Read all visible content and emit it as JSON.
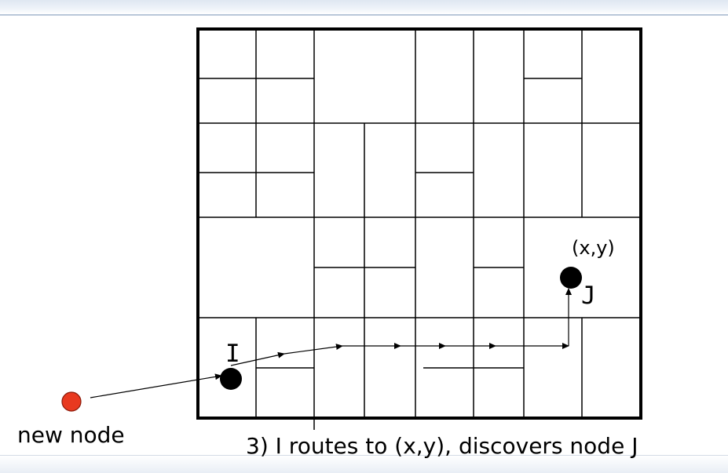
{
  "labels": {
    "node_i": "I",
    "node_j": "J",
    "point": "(x,y)",
    "new_node": "new node",
    "caption": "3) I routes to (x,y), discovers node J"
  },
  "colors": {
    "new_node_fill": "#e8391f",
    "node_fill": "#000000",
    "grid_stroke": "#000000"
  }
}
